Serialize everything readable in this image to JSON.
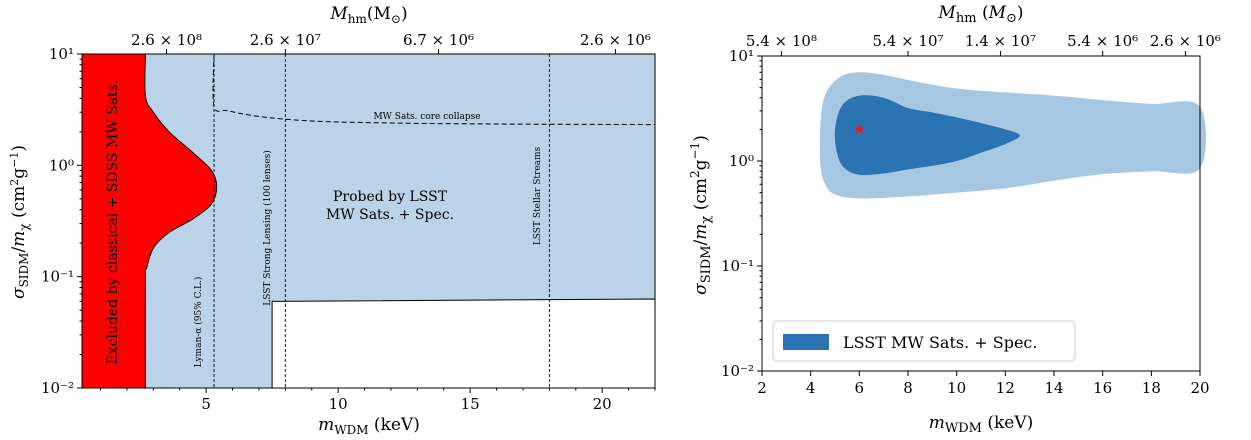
{
  "chart_data": [
    {
      "type": "area",
      "xlabel": "m_WDM (keV)",
      "ylabel": "σ_SIDM/m_χ (cm²g⁻¹)",
      "top_label": "M_hm (M_⊙)",
      "xlim": [
        0.3,
        22
      ],
      "ylim": [
        0.01,
        10
      ],
      "yscale": "log",
      "x_ticks": [
        "5",
        "10",
        "15",
        "20"
      ],
      "y_ticks": [
        "10⁻²",
        "10⁻¹",
        "10⁰",
        "10¹"
      ],
      "top_ticks": [
        {
          "x": 3.5,
          "label": "2.6 × 10⁸"
        },
        {
          "x": 8.0,
          "label": "2.6 × 10⁷"
        },
        {
          "x": 13.8,
          "label": "6.7 × 10⁶"
        },
        {
          "x": 20.5,
          "label": "2.6 × 10⁶"
        }
      ],
      "excluded_region": {
        "label": "Excluded by classical + SDSS MW Sats.",
        "color": "#ff0000",
        "boundary": [
          {
            "y": 10,
            "x": 2.7
          },
          {
            "y": 4.2,
            "x": 2.7
          },
          {
            "y": 3.0,
            "x": 3.0
          },
          {
            "y": 2.0,
            "x": 3.6
          },
          {
            "y": 1.3,
            "x": 4.5
          },
          {
            "y": 0.9,
            "x": 5.2
          },
          {
            "y": 0.65,
            "x": 5.4
          },
          {
            "y": 0.45,
            "x": 5.2
          },
          {
            "y": 0.33,
            "x": 4.5
          },
          {
            "y": 0.25,
            "x": 3.6
          },
          {
            "y": 0.18,
            "x": 3.0
          },
          {
            "y": 0.12,
            "x": 2.75
          },
          {
            "y": 0.1,
            "x": 2.7
          },
          {
            "y": 0.01,
            "x": 2.7
          }
        ]
      },
      "probed_region": {
        "label": "Probed by LSST MW Sats. + Spec.",
        "color": "#bad3e8",
        "lower_boundary": [
          {
            "x": 7.5,
            "y": 0.01
          },
          {
            "x": 7.5,
            "y": 0.06
          },
          {
            "x": 22,
            "y": 0.063
          }
        ]
      },
      "lines": [
        {
          "label": "Lyman-α (95% C.L.)",
          "orientation": "vertical",
          "x": 5.3
        },
        {
          "label": "LSST Strong Lensing (100 lenses)",
          "orientation": "vertical",
          "x": 8.0
        },
        {
          "label": "LSST Stellar Streams",
          "orientation": "vertical",
          "x": 18.0
        },
        {
          "label": "MW Sats. core collapse",
          "orientation": "curve",
          "points": [
            {
              "x": 5.3,
              "y": 10
            },
            {
              "x": 5.3,
              "y": 3.4
            },
            {
              "x": 5.8,
              "y": 3.1
            },
            {
              "x": 7.0,
              "y": 2.75
            },
            {
              "x": 9.0,
              "y": 2.5
            },
            {
              "x": 12.0,
              "y": 2.4
            },
            {
              "x": 16.0,
              "y": 2.35
            },
            {
              "x": 22.0,
              "y": 2.32
            }
          ]
        }
      ]
    },
    {
      "type": "area",
      "xlabel": "m_WDM (keV)",
      "ylabel": "σ_SIDM/m_χ (cm²g⁻¹)",
      "top_label": "M_hm (M_⊙)",
      "xlim": [
        2,
        20
      ],
      "ylim": [
        0.01,
        10
      ],
      "yscale": "log",
      "x_ticks": [
        "2",
        "4",
        "6",
        "8",
        "10",
        "12",
        "14",
        "16",
        "18",
        "20"
      ],
      "y_ticks": [
        "10⁻²",
        "10⁻¹",
        "10⁰",
        "10¹"
      ],
      "top_ticks": [
        {
          "x": 2.8,
          "label": "5.4 × 10⁸"
        },
        {
          "x": 8.0,
          "label": "5.4 × 10⁷"
        },
        {
          "x": 11.8,
          "label": "1.4 × 10⁷"
        },
        {
          "x": 16.0,
          "label": "5.4 × 10⁶"
        },
        {
          "x": 19.4,
          "label": "2.6 × 10⁶"
        }
      ],
      "legend": {
        "label": "LSST MW Sats. + Spec.",
        "location": "lower-left"
      },
      "series": [
        {
          "name": "LSST MW Sats. + Spec.",
          "level": "95%",
          "color": "#a5c7e2",
          "boundary": [
            {
              "x": 4.4,
              "y": 2.2
            },
            {
              "x": 4.6,
              "y": 4.3
            },
            {
              "x": 5.2,
              "y": 6.3
            },
            {
              "x": 6.0,
              "y": 7.0
            },
            {
              "x": 7.0,
              "y": 6.6
            },
            {
              "x": 8.5,
              "y": 5.6
            },
            {
              "x": 10.0,
              "y": 4.9
            },
            {
              "x": 12.0,
              "y": 4.5
            },
            {
              "x": 14.0,
              "y": 4.2
            },
            {
              "x": 16.0,
              "y": 3.8
            },
            {
              "x": 18.0,
              "y": 3.5
            },
            {
              "x": 20.0,
              "y": 3.3
            },
            {
              "x": 20.0,
              "y": 0.85
            },
            {
              "x": 18.0,
              "y": 0.8
            },
            {
              "x": 16.0,
              "y": 0.75
            },
            {
              "x": 14.0,
              "y": 0.65
            },
            {
              "x": 12.0,
              "y": 0.55
            },
            {
              "x": 10.0,
              "y": 0.5
            },
            {
              "x": 8.0,
              "y": 0.46
            },
            {
              "x": 6.0,
              "y": 0.44
            },
            {
              "x": 5.0,
              "y": 0.48
            },
            {
              "x": 4.6,
              "y": 0.6
            },
            {
              "x": 4.4,
              "y": 0.9
            }
          ]
        },
        {
          "name": "LSST MW Sats. + Spec.",
          "level": "68%",
          "color": "#2a74b3",
          "boundary": [
            {
              "x": 5.0,
              "y": 2.0
            },
            {
              "x": 5.3,
              "y": 3.4
            },
            {
              "x": 6.0,
              "y": 4.2
            },
            {
              "x": 7.0,
              "y": 4.0
            },
            {
              "x": 8.0,
              "y": 3.2
            },
            {
              "x": 9.0,
              "y": 2.9
            },
            {
              "x": 10.0,
              "y": 2.6
            },
            {
              "x": 11.0,
              "y": 2.3
            },
            {
              "x": 12.0,
              "y": 2.0
            },
            {
              "x": 12.6,
              "y": 1.75
            },
            {
              "x": 12.0,
              "y": 1.45
            },
            {
              "x": 11.0,
              "y": 1.2
            },
            {
              "x": 10.0,
              "y": 1.0
            },
            {
              "x": 9.0,
              "y": 0.9
            },
            {
              "x": 8.0,
              "y": 0.83
            },
            {
              "x": 7.0,
              "y": 0.76
            },
            {
              "x": 6.0,
              "y": 0.74
            },
            {
              "x": 5.4,
              "y": 0.85
            },
            {
              "x": 5.1,
              "y": 1.15
            }
          ]
        }
      ],
      "best_fit": {
        "x": 6,
        "y": 2.0,
        "color": "#e02020"
      }
    }
  ]
}
